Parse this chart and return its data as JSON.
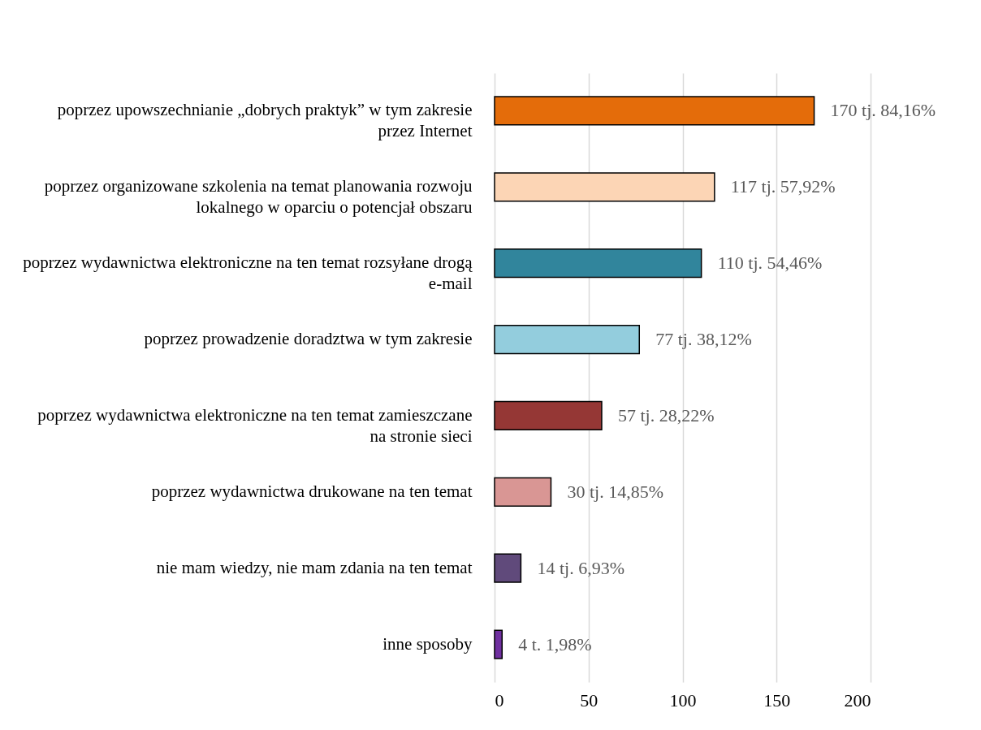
{
  "chart_data": {
    "type": "bar",
    "orientation": "horizontal",
    "categories": [
      "poprzez upowszechnianie „dobrych praktyk” w tym zakresie przez Internet",
      "poprzez organizowane szkolenia na temat planowania rozwoju lokalnego w oparciu o potencjał obszaru",
      "poprzez wydawnictwa elektroniczne na ten temat rozsyłane drogą e-mail",
      "poprzez prowadzenie doradztwa w tym zakresie",
      "poprzez wydawnictwa elektroniczne na ten temat zamieszczane na stronie sieci",
      "poprzez wydawnictwa drukowane na ten temat",
      "nie mam wiedzy, nie mam zdania na ten temat",
      "inne sposoby"
    ],
    "values": [
      170,
      117,
      110,
      77,
      57,
      30,
      14,
      4
    ],
    "colors": [
      "#e46c0a",
      "#fcd5b5",
      "#31859c",
      "#93cddd",
      "#953735",
      "#d99694",
      "#604a7b",
      "#7030a0"
    ],
    "value_labels": [
      "170 tj. 84,16%",
      "117 tj. 57,92%",
      "110 tj. 54,46%",
      "77 tj. 38,12%",
      "57 tj. 28,22%",
      "30 tj. 14,85%",
      "14 tj. 6,93%",
      "4 t. 1,98%"
    ],
    "xlim": [
      0,
      200
    ],
    "xticks": [
      0,
      50,
      100,
      150,
      200
    ],
    "grid": "x"
  }
}
